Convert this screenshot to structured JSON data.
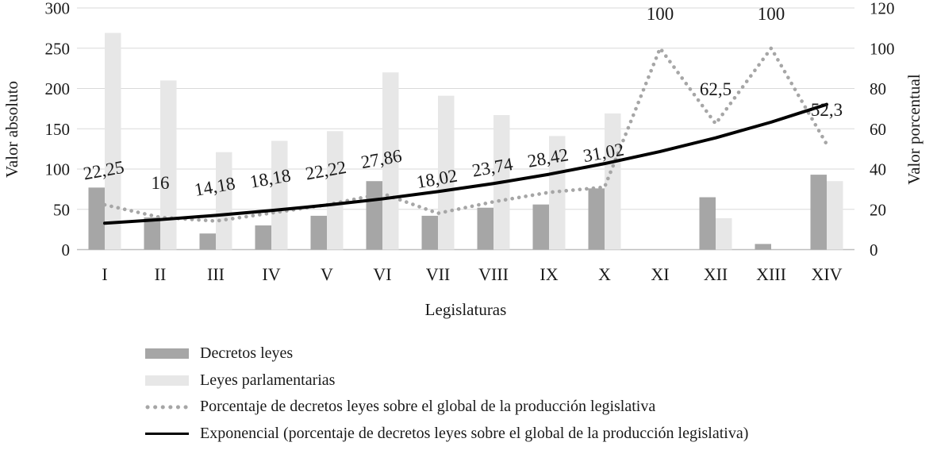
{
  "chart_data": {
    "type": "bar",
    "subtype": "combo-bar-line-dual-axis",
    "categories": [
      "I",
      "II",
      "III",
      "IV",
      "V",
      "VI",
      "VII",
      "VIII",
      "IX",
      "X",
      "XI",
      "XII",
      "XIII",
      "XIV"
    ],
    "xlabel": "Legislaturas",
    "left_axis": {
      "title": "Valor absoluto",
      "min": 0,
      "max": 300,
      "step": 50,
      "ticks": [
        "0",
        "50",
        "100",
        "150",
        "200",
        "250",
        "300"
      ]
    },
    "right_axis": {
      "title": "Valor porcentual",
      "min": 0,
      "max": 120,
      "step": 20,
      "ticks": [
        "0",
        "20",
        "40",
        "60",
        "80",
        "100",
        "120"
      ]
    },
    "grid": true,
    "legend_position": "bottom",
    "series": [
      {
        "name": "Decretos leyes",
        "type": "bar",
        "axis": "left",
        "color": "#a6a6a6",
        "values": [
          77,
          40,
          20,
          30,
          42,
          85,
          42,
          52,
          56,
          76,
          0,
          65,
          7,
          93
        ]
      },
      {
        "name": "Leyes parlamentarias",
        "type": "bar",
        "axis": "left",
        "color": "#e7e7e7",
        "values": [
          269,
          210,
          121,
          135,
          147,
          220,
          191,
          167,
          141,
          169,
          0,
          39,
          0,
          85
        ]
      },
      {
        "name": "Porcentaje de decretos leyes sobre el global de la producción legislativa",
        "type": "dotted-line",
        "axis": "right",
        "color": "#a6a6a6",
        "values": [
          22.25,
          16,
          14.18,
          18.18,
          22.22,
          27.86,
          18.02,
          23.74,
          28.42,
          31.02,
          100,
          62.5,
          100,
          52.3
        ],
        "point_labels": [
          "22,25",
          "16",
          "14,18",
          "18,18",
          "22,22",
          "27,86",
          "18,02",
          "23,74",
          "28,42",
          "31,02",
          "100",
          "62,5",
          "100",
          "52,3"
        ]
      },
      {
        "name": "Exponencial (porcentaje de decretos leyes sobre el global de la producción legislativa)",
        "type": "trendline",
        "axis": "right",
        "color": "#000000",
        "values": [
          13.1,
          14.9,
          17.0,
          19.4,
          22.1,
          25.2,
          28.8,
          32.8,
          37.4,
          42.7,
          48.7,
          55.5,
          63.3,
          72.1
        ]
      }
    ],
    "colors": {
      "grid": "#d9d9d9",
      "axis_line": "#bfbfbf",
      "text": "#1a1a1a"
    }
  }
}
